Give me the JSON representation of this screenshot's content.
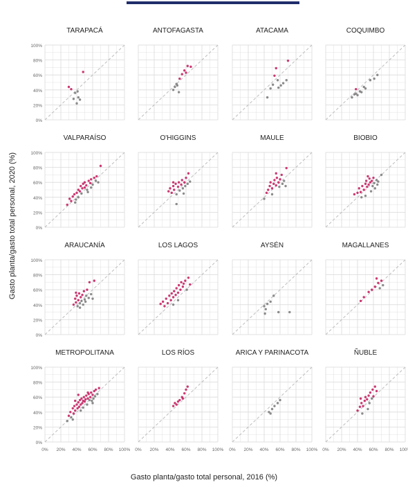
{
  "colors": {
    "accent": "#1f2d6b",
    "point_hi": "#c2185b",
    "point_lo": "#777777",
    "grid": "#d9d9d9",
    "diagonal": "#bdbdbd"
  },
  "chart_data": {
    "type": "scatter",
    "xlabel": "Gasto planta/gasto total personal, 2016 (%)",
    "ylabel": "Gasto planta/gasto total personal, 2020 (%)",
    "xlim": [
      0,
      100
    ],
    "ylim": [
      0,
      100
    ],
    "x_ticks": [
      "0%",
      "20%",
      "40%",
      "60%",
      "80%",
      "100%"
    ],
    "y_ticks": [
      "0%",
      "20%",
      "40%",
      "60%",
      "80%",
      "100%"
    ],
    "grid": true,
    "panels": [
      {
        "title": "TARAPACÁ",
        "points": [
          [
            30,
            44
          ],
          [
            33,
            41
          ],
          [
            38,
            36
          ],
          [
            41,
            38
          ],
          [
            36,
            28
          ],
          [
            42,
            30
          ],
          [
            40,
            22
          ],
          [
            44,
            27
          ],
          [
            48,
            64
          ]
        ]
      },
      {
        "title": "ANTOFAGASTA",
        "points": [
          [
            44,
            40
          ],
          [
            46,
            44
          ],
          [
            49,
            46
          ],
          [
            51,
            37
          ],
          [
            48,
            48
          ],
          [
            52,
            55
          ],
          [
            55,
            61
          ],
          [
            58,
            66
          ],
          [
            62,
            72
          ],
          [
            66,
            71
          ],
          [
            60,
            63
          ]
        ]
      },
      {
        "title": "ATACAMA",
        "points": [
          [
            44,
            30
          ],
          [
            48,
            42
          ],
          [
            51,
            47
          ],
          [
            53,
            59
          ],
          [
            55,
            69
          ],
          [
            58,
            43
          ],
          [
            61,
            46
          ],
          [
            64,
            49
          ],
          [
            68,
            53
          ],
          [
            70,
            79
          ],
          [
            57,
            53
          ]
        ]
      },
      {
        "title": "COQUIMBO",
        "points": [
          [
            33,
            30
          ],
          [
            36,
            34
          ],
          [
            38,
            35
          ],
          [
            40,
            33
          ],
          [
            43,
            38
          ],
          [
            45,
            37
          ],
          [
            48,
            44
          ],
          [
            50,
            42
          ],
          [
            56,
            53
          ],
          [
            61,
            55
          ],
          [
            65,
            60
          ],
          [
            38,
            41
          ]
        ]
      },
      {
        "title": "VALPARAÍSO",
        "points": [
          [
            28,
            30
          ],
          [
            31,
            38
          ],
          [
            33,
            35
          ],
          [
            35,
            41
          ],
          [
            37,
            44
          ],
          [
            39,
            37
          ],
          [
            40,
            46
          ],
          [
            42,
            50
          ],
          [
            44,
            48
          ],
          [
            45,
            55
          ],
          [
            47,
            52
          ],
          [
            48,
            58
          ],
          [
            50,
            60
          ],
          [
            52,
            56
          ],
          [
            53,
            50
          ],
          [
            55,
            62
          ],
          [
            57,
            59
          ],
          [
            58,
            64
          ],
          [
            60,
            57
          ],
          [
            62,
            66
          ],
          [
            64,
            62
          ],
          [
            65,
            68
          ],
          [
            67,
            60
          ],
          [
            70,
            82
          ],
          [
            38,
            33
          ],
          [
            42,
            40
          ],
          [
            46,
            45
          ],
          [
            50,
            53
          ],
          [
            54,
            47
          ],
          [
            58,
            53
          ]
        ]
      },
      {
        "title": "O'HIGGINS",
        "points": [
          [
            38,
            48
          ],
          [
            40,
            52
          ],
          [
            42,
            46
          ],
          [
            44,
            55
          ],
          [
            45,
            50
          ],
          [
            47,
            58
          ],
          [
            48,
            44
          ],
          [
            50,
            54
          ],
          [
            51,
            60
          ],
          [
            52,
            49
          ],
          [
            54,
            57
          ],
          [
            55,
            63
          ],
          [
            56,
            52
          ],
          [
            58,
            60
          ],
          [
            59,
            55
          ],
          [
            60,
            66
          ],
          [
            62,
            58
          ],
          [
            63,
            72
          ],
          [
            65,
            61
          ],
          [
            48,
            31
          ],
          [
            44,
            60
          ],
          [
            57,
            45
          ]
        ]
      },
      {
        "title": "MAULE",
        "points": [
          [
            40,
            38
          ],
          [
            43,
            46
          ],
          [
            45,
            50
          ],
          [
            47,
            55
          ],
          [
            48,
            60
          ],
          [
            50,
            52
          ],
          [
            52,
            58
          ],
          [
            53,
            63
          ],
          [
            55,
            56
          ],
          [
            56,
            66
          ],
          [
            58,
            60
          ],
          [
            59,
            54
          ],
          [
            60,
            64
          ],
          [
            62,
            70
          ],
          [
            63,
            58
          ],
          [
            65,
            62
          ],
          [
            67,
            55
          ],
          [
            68,
            79
          ],
          [
            50,
            44
          ],
          [
            55,
            72
          ]
        ]
      },
      {
        "title": "BIOBIO",
        "points": [
          [
            36,
            44
          ],
          [
            40,
            46
          ],
          [
            42,
            52
          ],
          [
            44,
            47
          ],
          [
            46,
            55
          ],
          [
            48,
            50
          ],
          [
            50,
            58
          ],
          [
            51,
            62
          ],
          [
            52,
            54
          ],
          [
            54,
            57
          ],
          [
            55,
            65
          ],
          [
            56,
            60
          ],
          [
            57,
            48
          ],
          [
            58,
            62
          ],
          [
            59,
            55
          ],
          [
            60,
            66
          ],
          [
            61,
            59
          ],
          [
            62,
            52
          ],
          [
            64,
            63
          ],
          [
            65,
            57
          ],
          [
            66,
            61
          ],
          [
            45,
            40
          ],
          [
            50,
            42
          ],
          [
            70,
            70
          ],
          [
            53,
            68
          ]
        ]
      },
      {
        "title": "ARAUCANÍA",
        "points": [
          [
            36,
            40
          ],
          [
            38,
            48
          ],
          [
            39,
            43
          ],
          [
            40,
            52
          ],
          [
            41,
            38
          ],
          [
            42,
            46
          ],
          [
            43,
            55
          ],
          [
            44,
            42
          ],
          [
            45,
            50
          ],
          [
            46,
            45
          ],
          [
            47,
            53
          ],
          [
            48,
            40
          ],
          [
            49,
            58
          ],
          [
            50,
            47
          ],
          [
            51,
            44
          ],
          [
            52,
            52
          ],
          [
            53,
            60
          ],
          [
            55,
            49
          ],
          [
            56,
            70
          ],
          [
            58,
            54
          ],
          [
            60,
            48
          ],
          [
            62,
            72
          ],
          [
            44,
            36
          ],
          [
            39,
            56
          ]
        ]
      },
      {
        "title": "LOS LAGOS",
        "points": [
          [
            28,
            41
          ],
          [
            31,
            44
          ],
          [
            33,
            38
          ],
          [
            35,
            48
          ],
          [
            37,
            42
          ],
          [
            39,
            52
          ],
          [
            41,
            46
          ],
          [
            42,
            55
          ],
          [
            44,
            50
          ],
          [
            45,
            58
          ],
          [
            47,
            53
          ],
          [
            48,
            62
          ],
          [
            50,
            56
          ],
          [
            51,
            66
          ],
          [
            53,
            60
          ],
          [
            54,
            70
          ],
          [
            56,
            64
          ],
          [
            57,
            68
          ],
          [
            59,
            72
          ],
          [
            61,
            60
          ],
          [
            63,
            76
          ],
          [
            65,
            67
          ],
          [
            50,
            46
          ],
          [
            44,
            40
          ]
        ]
      },
      {
        "title": "AYSÉN",
        "points": [
          [
            40,
            38
          ],
          [
            42,
            34
          ],
          [
            44,
            41
          ],
          [
            48,
            44
          ],
          [
            52,
            52
          ],
          [
            58,
            30
          ],
          [
            72,
            30
          ],
          [
            41,
            28
          ]
        ]
      },
      {
        "title": "MAGALLANES",
        "points": [
          [
            44,
            45
          ],
          [
            48,
            50
          ],
          [
            54,
            57
          ],
          [
            58,
            60
          ],
          [
            62,
            64
          ],
          [
            66,
            69
          ],
          [
            70,
            72
          ],
          [
            72,
            66
          ],
          [
            64,
            75
          ],
          [
            68,
            62
          ]
        ]
      },
      {
        "title": "METROPOLITANA",
        "points": [
          [
            28,
            28
          ],
          [
            30,
            35
          ],
          [
            32,
            40
          ],
          [
            33,
            33
          ],
          [
            35,
            45
          ],
          [
            36,
            38
          ],
          [
            37,
            48
          ],
          [
            38,
            42
          ],
          [
            40,
            50
          ],
          [
            41,
            45
          ],
          [
            42,
            53
          ],
          [
            43,
            47
          ],
          [
            44,
            56
          ],
          [
            45,
            50
          ],
          [
            46,
            58
          ],
          [
            47,
            52
          ],
          [
            48,
            55
          ],
          [
            49,
            60
          ],
          [
            50,
            54
          ],
          [
            51,
            57
          ],
          [
            52,
            62
          ],
          [
            53,
            50
          ],
          [
            54,
            58
          ],
          [
            55,
            64
          ],
          [
            56,
            56
          ],
          [
            57,
            60
          ],
          [
            58,
            66
          ],
          [
            59,
            55
          ],
          [
            60,
            63
          ],
          [
            61,
            58
          ],
          [
            62,
            68
          ],
          [
            63,
            61
          ],
          [
            64,
            70
          ],
          [
            66,
            64
          ],
          [
            68,
            72
          ],
          [
            38,
            55
          ],
          [
            42,
            63
          ],
          [
            48,
            46
          ],
          [
            54,
            66
          ],
          [
            60,
            52
          ],
          [
            35,
            30
          ],
          [
            45,
            42
          ]
        ]
      },
      {
        "title": "LOS RÍOS",
        "points": [
          [
            44,
            48
          ],
          [
            46,
            52
          ],
          [
            48,
            50
          ],
          [
            52,
            56
          ],
          [
            55,
            60
          ],
          [
            58,
            65
          ],
          [
            60,
            70
          ],
          [
            62,
            74
          ],
          [
            56,
            58
          ],
          [
            50,
            54
          ]
        ]
      },
      {
        "title": "ARICA Y PARINACOTA",
        "points": [
          [
            46,
            40
          ],
          [
            50,
            44
          ],
          [
            53,
            48
          ],
          [
            57,
            52
          ],
          [
            60,
            56
          ],
          [
            48,
            38
          ]
        ]
      },
      {
        "title": "ÑUBLE",
        "points": [
          [
            40,
            42
          ],
          [
            43,
            47
          ],
          [
            45,
            52
          ],
          [
            47,
            48
          ],
          [
            49,
            55
          ],
          [
            50,
            60
          ],
          [
            52,
            57
          ],
          [
            54,
            62
          ],
          [
            55,
            52
          ],
          [
            56,
            66
          ],
          [
            58,
            58
          ],
          [
            60,
            61
          ],
          [
            62,
            74
          ],
          [
            64,
            68
          ],
          [
            46,
            38
          ],
          [
            53,
            44
          ],
          [
            59,
            70
          ],
          [
            44,
            58
          ]
        ]
      }
    ]
  }
}
